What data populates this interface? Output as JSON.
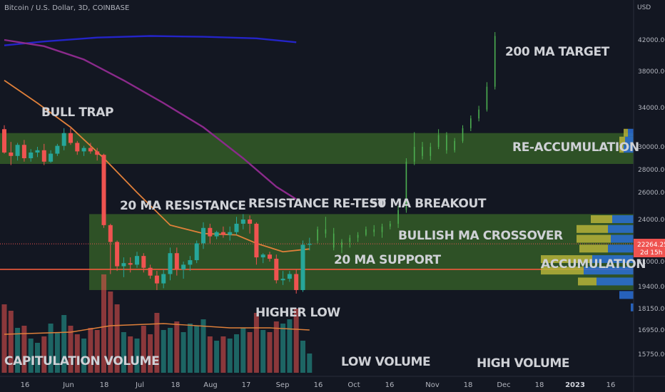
{
  "symbol_label": "Bitcoin / U.S. Dollar, 3D, COINBASE",
  "currency_label": "USD",
  "colors": {
    "background": "#131722",
    "up": "#26a69a",
    "down": "#ef5350",
    "up_projection": "#4caf50",
    "zone_fill": "#4a8c2a",
    "ma20": "#e0803a",
    "ma50": "#8b2a8b",
    "ma200": "#2424c8",
    "support_line": "#f05a3c",
    "volume_profile_up": "#2a6fd6",
    "volume_profile_down": "#b5b23a"
  },
  "annotations": [
    {
      "name": "bull-trap",
      "text": "BULL TRAP"
    },
    {
      "name": "twenty-ma-resistance",
      "text": "20 MA RESISTANCE"
    },
    {
      "name": "resistance-retest",
      "text": "RESISTANCE RE-TEST"
    },
    {
      "name": "fifty-ma-breakout",
      "text": "50 MA BREAKOUT"
    },
    {
      "name": "two-hundred-ma-target",
      "text": "200 MA TARGET"
    },
    {
      "name": "re-accumulation",
      "text": "RE-ACCUMULATION"
    },
    {
      "name": "bullish-ma-crossover",
      "text": "BULLISH MA CROSSOVER"
    },
    {
      "name": "twenty-ma-support",
      "text": "20 MA SUPPORT"
    },
    {
      "name": "accumulation",
      "text": "ACCUMULATION"
    },
    {
      "name": "higher-low",
      "text": "HIGHER LOW"
    },
    {
      "name": "capitulation-volume",
      "text": "CAPITULATION VOLUME"
    },
    {
      "name": "low-volume",
      "text": "LOW VOLUME"
    },
    {
      "name": "high-volume",
      "text": "HIGH VOLUME"
    }
  ],
  "last_price": {
    "value": "22264.25",
    "countdown": "2d 15h"
  },
  "chart_data": {
    "type": "candlestick",
    "title": "Bitcoin / U.S. Dollar, 3D, COINBASE",
    "y_axis": {
      "ticks": [
        "42000.00",
        "38000.00",
        "34000.00",
        "30000.00",
        "28000.00",
        "26000.00",
        "24000.00",
        "21000.00",
        "19400.00",
        "18150.00",
        "16950.00",
        "15750.00"
      ]
    },
    "x_axis": {
      "ticks": [
        {
          "label": "16",
          "bold": false
        },
        {
          "label": "Jun",
          "bold": false
        },
        {
          "label": "18",
          "bold": false
        },
        {
          "label": "Jul",
          "bold": false
        },
        {
          "label": "18",
          "bold": false
        },
        {
          "label": "Aug",
          "bold": false
        },
        {
          "label": "17",
          "bold": false
        },
        {
          "label": "Sep",
          "bold": false
        },
        {
          "label": "16",
          "bold": false
        },
        {
          "label": "Oct",
          "bold": false
        },
        {
          "label": "16",
          "bold": false
        },
        {
          "label": "Nov",
          "bold": false
        },
        {
          "label": "18",
          "bold": false
        },
        {
          "label": "Dec",
          "bold": false
        },
        {
          "label": "18",
          "bold": false
        },
        {
          "label": "2023",
          "bold": true
        },
        {
          "label": "16",
          "bold": false
        }
      ]
    },
    "candles": [
      {
        "o": 31800,
        "h": 32200,
        "l": 29400,
        "c": 29500
      },
      {
        "o": 29500,
        "h": 30500,
        "l": 28400,
        "c": 29200
      },
      {
        "o": 29200,
        "h": 30400,
        "l": 28800,
        "c": 30200
      },
      {
        "o": 30200,
        "h": 30700,
        "l": 28700,
        "c": 29000
      },
      {
        "o": 29000,
        "h": 29800,
        "l": 28700,
        "c": 29500
      },
      {
        "o": 29500,
        "h": 30000,
        "l": 29100,
        "c": 29700
      },
      {
        "o": 29700,
        "h": 30300,
        "l": 28400,
        "c": 28700
      },
      {
        "o": 28700,
        "h": 29700,
        "l": 28600,
        "c": 29400
      },
      {
        "o": 29400,
        "h": 30300,
        "l": 29200,
        "c": 30100
      },
      {
        "o": 30100,
        "h": 31900,
        "l": 29700,
        "c": 31400
      },
      {
        "o": 31400,
        "h": 31900,
        "l": 30200,
        "c": 30400
      },
      {
        "o": 30400,
        "h": 30600,
        "l": 29300,
        "c": 29600
      },
      {
        "o": 29600,
        "h": 30100,
        "l": 29200,
        "c": 29900
      },
      {
        "o": 29900,
        "h": 30400,
        "l": 29400,
        "c": 29600
      },
      {
        "o": 29600,
        "h": 29900,
        "l": 28800,
        "c": 29300
      },
      {
        "o": 29300,
        "h": 29400,
        "l": 23400,
        "c": 23600
      },
      {
        "o": 23600,
        "h": 23700,
        "l": 20200,
        "c": 22400
      },
      {
        "o": 22400,
        "h": 22500,
        "l": 20400,
        "c": 20700
      },
      {
        "o": 20700,
        "h": 21300,
        "l": 20000,
        "c": 20900
      },
      {
        "o": 20900,
        "h": 21300,
        "l": 20300,
        "c": 20800
      },
      {
        "o": 20800,
        "h": 21700,
        "l": 20600,
        "c": 21400
      },
      {
        "o": 21400,
        "h": 21600,
        "l": 20300,
        "c": 20600
      },
      {
        "o": 20600,
        "h": 20800,
        "l": 19900,
        "c": 20100
      },
      {
        "o": 20100,
        "h": 20400,
        "l": 19200,
        "c": 19600
      },
      {
        "o": 19600,
        "h": 20500,
        "l": 19300,
        "c": 20200
      },
      {
        "o": 20200,
        "h": 22000,
        "l": 19800,
        "c": 21600
      },
      {
        "o": 21600,
        "h": 22000,
        "l": 20100,
        "c": 20500
      },
      {
        "o": 20500,
        "h": 21000,
        "l": 19900,
        "c": 20800
      },
      {
        "o": 20800,
        "h": 21400,
        "l": 20400,
        "c": 21100
      },
      {
        "o": 21100,
        "h": 22500,
        "l": 20900,
        "c": 22300
      },
      {
        "o": 22300,
        "h": 23800,
        "l": 21900,
        "c": 23400
      },
      {
        "o": 23400,
        "h": 23700,
        "l": 22300,
        "c": 22800
      },
      {
        "o": 22800,
        "h": 23200,
        "l": 22600,
        "c": 23100
      },
      {
        "o": 23100,
        "h": 23500,
        "l": 22700,
        "c": 22900
      },
      {
        "o": 22900,
        "h": 23500,
        "l": 22500,
        "c": 23100
      },
      {
        "o": 23100,
        "h": 24200,
        "l": 22900,
        "c": 23700
      },
      {
        "o": 23700,
        "h": 24400,
        "l": 23300,
        "c": 24000
      },
      {
        "o": 24000,
        "h": 24300,
        "l": 23000,
        "c": 23700
      },
      {
        "o": 23700,
        "h": 23800,
        "l": 20800,
        "c": 21300
      },
      {
        "o": 21300,
        "h": 21600,
        "l": 20900,
        "c": 21500
      },
      {
        "o": 21500,
        "h": 21700,
        "l": 21000,
        "c": 21200
      },
      {
        "o": 21200,
        "h": 21500,
        "l": 19600,
        "c": 19800
      },
      {
        "o": 19800,
        "h": 20400,
        "l": 19500,
        "c": 19900
      },
      {
        "o": 19900,
        "h": 20400,
        "l": 19700,
        "c": 20200
      },
      {
        "o": 20200,
        "h": 20500,
        "l": 19000,
        "c": 19200
      },
      {
        "o": 19200,
        "h": 22500,
        "l": 19100,
        "c": 22200
      },
      {
        "o": 22200,
        "h": 22700,
        "l": 21800,
        "c": 22264.25
      }
    ],
    "projection": [
      {
        "o": 22500,
        "h": 23500,
        "l": 22300,
        "c": 23300
      },
      {
        "o": 23300,
        "h": 24200,
        "l": 22700,
        "c": 23000
      },
      {
        "o": 23000,
        "h": 23400,
        "l": 21800,
        "c": 22000
      },
      {
        "o": 22000,
        "h": 22600,
        "l": 21600,
        "c": 22400
      },
      {
        "o": 22400,
        "h": 22900,
        "l": 22000,
        "c": 22700
      },
      {
        "o": 22700,
        "h": 23100,
        "l": 22400,
        "c": 22900
      },
      {
        "o": 22900,
        "h": 23500,
        "l": 22800,
        "c": 23300
      },
      {
        "o": 23300,
        "h": 23600,
        "l": 22800,
        "c": 23100
      },
      {
        "o": 23100,
        "h": 23700,
        "l": 22700,
        "c": 23500
      },
      {
        "o": 23500,
        "h": 23900,
        "l": 23300,
        "c": 23700
      },
      {
        "o": 23700,
        "h": 25000,
        "l": 23400,
        "c": 24700
      },
      {
        "o": 24700,
        "h": 29000,
        "l": 24500,
        "c": 28700
      },
      {
        "o": 28700,
        "h": 31500,
        "l": 28400,
        "c": 30000
      },
      {
        "o": 30000,
        "h": 30500,
        "l": 28900,
        "c": 29200
      },
      {
        "o": 29200,
        "h": 30400,
        "l": 28800,
        "c": 30000
      },
      {
        "o": 30000,
        "h": 31800,
        "l": 29800,
        "c": 31200
      },
      {
        "o": 31200,
        "h": 31500,
        "l": 29400,
        "c": 29700
      },
      {
        "o": 29700,
        "h": 30900,
        "l": 29500,
        "c": 30600
      },
      {
        "o": 30600,
        "h": 32200,
        "l": 30400,
        "c": 31900
      },
      {
        "o": 31900,
        "h": 33200,
        "l": 31600,
        "c": 32900
      },
      {
        "o": 32900,
        "h": 34200,
        "l": 32600,
        "c": 33800
      },
      {
        "o": 33800,
        "h": 36800,
        "l": 33600,
        "c": 36300
      },
      {
        "o": 36300,
        "h": 43000,
        "l": 36000,
        "c": 42500
      }
    ],
    "ma20": [
      {
        "i": 0,
        "v": 37000
      },
      {
        "i": 5,
        "v": 34500
      },
      {
        "i": 10,
        "v": 32000
      },
      {
        "i": 15,
        "v": 29000
      },
      {
        "i": 20,
        "v": 26000
      },
      {
        "i": 25,
        "v": 23600
      },
      {
        "i": 30,
        "v": 23000
      },
      {
        "i": 35,
        "v": 22900
      },
      {
        "i": 38,
        "v": 22300
      },
      {
        "i": 42,
        "v": 21700
      },
      {
        "i": 46,
        "v": 21900
      }
    ],
    "ma50": [
      {
        "i": 0,
        "v": 42000
      },
      {
        "i": 6,
        "v": 41200
      },
      {
        "i": 12,
        "v": 39500
      },
      {
        "i": 18,
        "v": 37000
      },
      {
        "i": 24,
        "v": 34500
      },
      {
        "i": 30,
        "v": 32000
      },
      {
        "i": 36,
        "v": 29000
      },
      {
        "i": 41,
        "v": 26500
      },
      {
        "i": 44,
        "v": 25500
      }
    ],
    "ma200": [
      {
        "i": 0,
        "v": 41300
      },
      {
        "i": 6,
        "v": 41800
      },
      {
        "i": 14,
        "v": 42300
      },
      {
        "i": 22,
        "v": 42500
      },
      {
        "i": 30,
        "v": 42400
      },
      {
        "i": 38,
        "v": 42200
      },
      {
        "i": 44,
        "v": 41700
      }
    ],
    "volume": [
      32,
      29,
      21,
      22,
      16,
      14,
      17,
      23,
      19,
      27,
      22,
      18,
      16,
      21,
      20,
      46,
      38,
      32,
      19,
      17,
      16,
      22,
      18,
      28,
      20,
      21,
      24,
      19,
      23,
      22,
      25,
      17,
      15,
      17,
      16,
      18,
      21,
      19,
      28,
      20,
      19,
      24,
      23,
      25,
      30,
      15,
      9
    ],
    "volume_ma": [
      {
        "i": 0,
        "v": 18
      },
      {
        "i": 10,
        "v": 19
      },
      {
        "i": 16,
        "v": 22
      },
      {
        "i": 24,
        "v": 23
      },
      {
        "i": 34,
        "v": 21
      },
      {
        "i": 40,
        "v": 21
      },
      {
        "i": 46,
        "v": 20
      }
    ],
    "zones": [
      {
        "name": "re-accumulation-zone",
        "low": 28500,
        "high": 31400
      },
      {
        "name": "accumulation-zone",
        "low": 19200,
        "high": 24400
      }
    ],
    "support_price": 20500,
    "last_price_dotted": 22264.25,
    "volume_profile": [
      {
        "price": 24000,
        "up": 30,
        "down": 30
      },
      {
        "price": 23300,
        "up": 36,
        "down": 44
      },
      {
        "price": 22600,
        "up": 32,
        "down": 48
      },
      {
        "price": 21900,
        "up": 36,
        "down": 40
      },
      {
        "price": 21150,
        "up": 58,
        "down": 72
      },
      {
        "price": 20400,
        "up": 70,
        "down": 60
      },
      {
        "price": 19700,
        "up": 52,
        "down": 26
      },
      {
        "price": 18900,
        "up": 20,
        "down": 0
      },
      {
        "price": 18200,
        "up": 4,
        "down": 0
      },
      {
        "price": 29800,
        "up": 14,
        "down": 6
      },
      {
        "price": 30600,
        "up": 12,
        "down": 8
      },
      {
        "price": 31400,
        "up": 8,
        "down": 6
      }
    ]
  }
}
